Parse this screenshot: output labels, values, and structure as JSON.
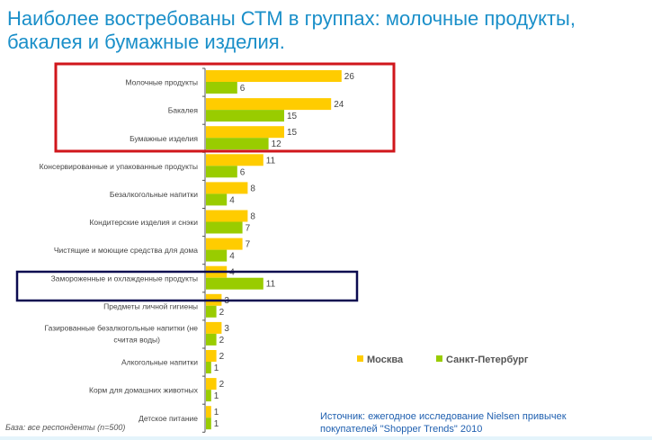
{
  "title": "Наиболее востребованы СТМ в группах: молочные продукты, бакалея и бумажные изделия.",
  "base_note": "База: все респонденты (n=500)",
  "source_note": "Источник: ежегодное исследование Nielsen привычек покупателей \"Shopper Trends\" 2010",
  "colors": {
    "moscow": "#ffcc00",
    "spb": "#99cc00",
    "highlight_red": "#d0161b",
    "highlight_navy": "#0b0b50"
  },
  "chart_data": {
    "type": "bar",
    "orientation": "horizontal",
    "categories": [
      "Молочные продукты",
      "Бакалея",
      "Бумажные изделия",
      "Консервированные и упакованные продукты",
      "Безалкогольные напитки",
      "Кондитерские изделия и снэки",
      "Чистящие и моющие средства для дома",
      "Замороженные и охлажденные продукты",
      "Предметы личной гигиены",
      "Газированные безалкогольные напитки (не считая воды)",
      "Алкогольные напитки",
      "Корм для домашних животных",
      "Детское питание"
    ],
    "series": [
      {
        "name": "Москва",
        "values": [
          26,
          24,
          15,
          11,
          8,
          8,
          7,
          4,
          3,
          3,
          2,
          2,
          1
        ]
      },
      {
        "name": "Санкт-Петербург",
        "values": [
          6,
          15,
          12,
          6,
          4,
          7,
          4,
          11,
          2,
          2,
          1,
          1,
          1
        ]
      }
    ],
    "xlim": [
      0,
      30
    ],
    "legend_position": "right",
    "highlights": [
      {
        "categories": [
          0,
          1,
          2
        ],
        "color": "red"
      },
      {
        "categories": [
          7
        ],
        "color": "navy"
      }
    ]
  }
}
